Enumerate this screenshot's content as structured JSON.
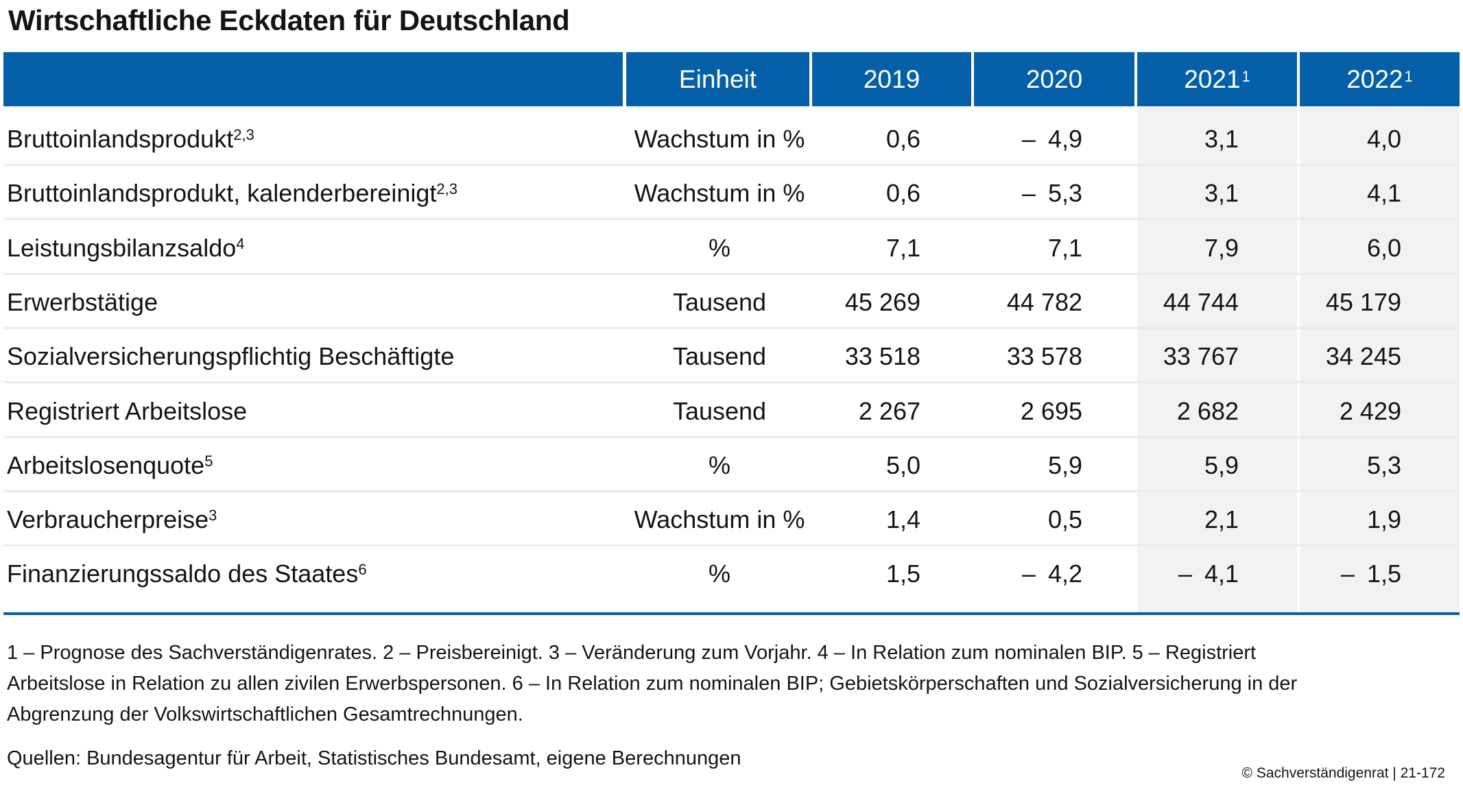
{
  "title": "Wirtschaftliche Eckdaten für Deutschland",
  "colors": {
    "header_bg": "#0660a9",
    "forecast_shade": "#f2f2f2",
    "rule": "#0660a9"
  },
  "table": {
    "headers": {
      "unit": "Einheit",
      "y2019": "2019",
      "y2020": "2020",
      "y2021": "2021",
      "y2021_sup": "1",
      "y2022": "2022",
      "y2022_sup": "1"
    },
    "rows": [
      {
        "label": "Bruttoinlandsprodukt",
        "sup": "2,3",
        "unit": "Wachstum in %",
        "v2019": "0,6",
        "v2020": "4,9",
        "v2020_neg": "–",
        "v2021": "3,1",
        "v2021_neg": "",
        "v2022": "4,0",
        "v2022_neg": ""
      },
      {
        "label": "Bruttoinlandsprodukt, kalenderbereinigt",
        "sup": "2,3",
        "unit": "Wachstum in %",
        "v2019": "0,6",
        "v2020": "5,3",
        "v2020_neg": "–",
        "v2021": "3,1",
        "v2021_neg": "",
        "v2022": "4,1",
        "v2022_neg": ""
      },
      {
        "label": "Leistungsbilanzsaldo",
        "sup": "4",
        "unit": "%",
        "v2019": "7,1",
        "v2020": "7,1",
        "v2020_neg": "",
        "v2021": "7,9",
        "v2021_neg": "",
        "v2022": "6,0",
        "v2022_neg": ""
      },
      {
        "label": "Erwerbstätige",
        "sup": "",
        "unit": "Tausend",
        "v2019": "45 269",
        "v2020": "44 782",
        "v2020_neg": "",
        "v2021": "44 744",
        "v2021_neg": "",
        "v2022": "45 179",
        "v2022_neg": ""
      },
      {
        "label": "Sozialversicherungspflichtig Beschäftigte",
        "sup": "",
        "unit": "Tausend",
        "v2019": "33 518",
        "v2020": "33 578",
        "v2020_neg": "",
        "v2021": "33 767",
        "v2021_neg": "",
        "v2022": "34 245",
        "v2022_neg": ""
      },
      {
        "label": "Registriert Arbeitslose",
        "sup": "",
        "unit": "Tausend",
        "v2019": "2 267",
        "v2020": "2 695",
        "v2020_neg": "",
        "v2021": "2 682",
        "v2021_neg": "",
        "v2022": "2 429",
        "v2022_neg": ""
      },
      {
        "label": "Arbeitslosenquote",
        "sup": "5",
        "unit": "%",
        "v2019": "5,0",
        "v2020": "5,9",
        "v2020_neg": "",
        "v2021": "5,9",
        "v2021_neg": "",
        "v2022": "5,3",
        "v2022_neg": ""
      },
      {
        "label": "Verbraucherpreise",
        "sup": "3",
        "unit": "Wachstum in %",
        "v2019": "1,4",
        "v2020": "0,5",
        "v2020_neg": "",
        "v2021": "2,1",
        "v2021_neg": "",
        "v2022": "1,9",
        "v2022_neg": ""
      },
      {
        "label": "Finanzierungssaldo des Staates",
        "sup": "6",
        "unit": "%",
        "v2019": "1,5",
        "v2020": "4,2",
        "v2020_neg": "–",
        "v2021": "4,1",
        "v2021_neg": "–",
        "v2022": "1,5",
        "v2022_neg": "–"
      }
    ]
  },
  "footnotes": {
    "line1": "1 – Prognose des Sachverständigenrates.  2 – Preisbereinigt.  3 – Veränderung zum Vorjahr.  4 – In Relation zum nominalen BIP.  5 – Registriert",
    "line2": "Arbeitslose in Relation zu allen zivilen Erwerbspersonen.  6 – In Relation zum nominalen BIP; Gebietskörperschaften und Sozialversicherung in der",
    "line3": "Abgrenzung der Volkswirtschaftlichen Gesamtrechnungen."
  },
  "sources": "Quellen: Bundesagentur für Arbeit, Statistisches Bundesamt, eigene Berechnungen",
  "copyright": "© Sachverständigenrat | 21-172",
  "chart_data": {
    "type": "table",
    "title": "Wirtschaftliche Eckdaten für Deutschland",
    "columns": [
      "Einheit",
      "2019",
      "2020",
      "2021",
      "2022"
    ],
    "rows": [
      {
        "label": "Bruttoinlandsprodukt",
        "unit": "Wachstum in %",
        "values": [
          0.6,
          -4.9,
          3.1,
          4.0
        ]
      },
      {
        "label": "Bruttoinlandsprodukt, kalenderbereinigt",
        "unit": "Wachstum in %",
        "values": [
          0.6,
          -5.3,
          3.1,
          4.1
        ]
      },
      {
        "label": "Leistungsbilanzsaldo",
        "unit": "%",
        "values": [
          7.1,
          7.1,
          7.9,
          6.0
        ]
      },
      {
        "label": "Erwerbstätige",
        "unit": "Tausend",
        "values": [
          45269,
          44782,
          44744,
          45179
        ]
      },
      {
        "label": "Sozialversicherungspflichtig Beschäftigte",
        "unit": "Tausend",
        "values": [
          33518,
          33578,
          33767,
          34245
        ]
      },
      {
        "label": "Registriert Arbeitslose",
        "unit": "Tausend",
        "values": [
          2267,
          2695,
          2682,
          2429
        ]
      },
      {
        "label": "Arbeitslosenquote",
        "unit": "%",
        "values": [
          5.0,
          5.9,
          5.9,
          5.3
        ]
      },
      {
        "label": "Verbraucherpreise",
        "unit": "Wachstum in %",
        "values": [
          1.4,
          0.5,
          2.1,
          1.9
        ]
      },
      {
        "label": "Finanzierungssaldo des Staates",
        "unit": "%",
        "values": [
          1.5,
          -4.2,
          -4.1,
          -1.5
        ]
      }
    ]
  }
}
